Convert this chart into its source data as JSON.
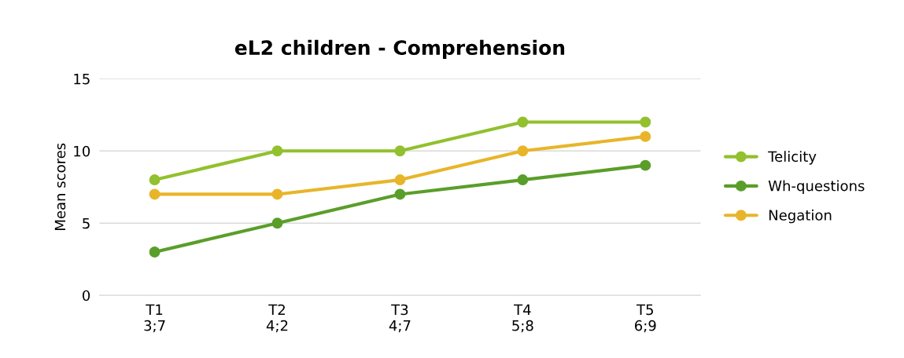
{
  "chart_data": {
    "type": "line",
    "title": "eL2 children - Comprehension",
    "ylabel": "Mean scores",
    "categories": [
      "T1\n3;7",
      "T2\n4;2",
      "T3\n4;7",
      "T4\n5;8",
      "T5\n6;9"
    ],
    "series": [
      {
        "name": "Telicity",
        "color": "#92c02e",
        "values": [
          8,
          10,
          10,
          12,
          12
        ]
      },
      {
        "name": "Wh-questions",
        "color": "#5a9e2a",
        "values": [
          3,
          5,
          7,
          8,
          9
        ]
      },
      {
        "name": "Negation",
        "color": "#e8b52a",
        "values": [
          7,
          7,
          8,
          10,
          11
        ]
      }
    ],
    "ylim": [
      0,
      15
    ],
    "yticks": [
      0,
      5,
      10,
      15
    ],
    "grid": "y",
    "legend": "right",
    "marker": "circle",
    "line_style": "solid"
  }
}
